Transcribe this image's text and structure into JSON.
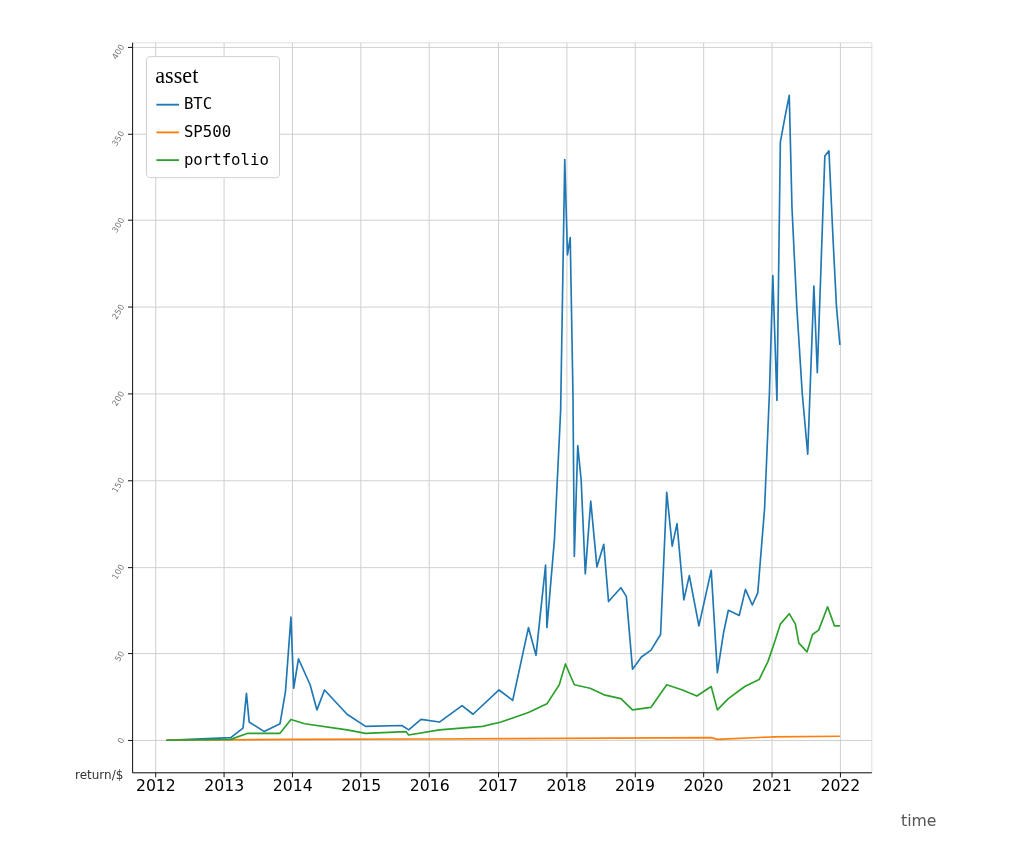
{
  "chart_data": {
    "type": "line",
    "xlabel": "time",
    "ylabel": "return/$",
    "legend_title": "asset",
    "legend": "top left",
    "grid": true,
    "xlim": [
      2011.66,
      2022.46
    ],
    "xticks": [
      2012,
      2013,
      2014,
      2015,
      2016,
      2017,
      2018,
      2019,
      2020,
      2021,
      2022
    ],
    "ylim": [
      -18.5,
      402.6
    ],
    "yticks": [
      0,
      50,
      100,
      150,
      200,
      250,
      300,
      350,
      400
    ],
    "series": [
      {
        "name": "BTC",
        "color": "#1f77b4",
        "x": [
          2012.16,
          2013.1,
          2013.28,
          2013.33,
          2013.37,
          2013.59,
          2013.82,
          2013.9,
          2013.98,
          2014.02,
          2014.09,
          2014.26,
          2014.36,
          2014.47,
          2014.8,
          2015.07,
          2015.6,
          2015.7,
          2015.88,
          2016.15,
          2016.48,
          2016.64,
          2017.02,
          2017.22,
          2017.45,
          2017.56,
          2017.7,
          2017.72,
          2017.83,
          2017.92,
          2017.98,
          2018.02,
          2018.06,
          2018.1,
          2018.12,
          2018.17,
          2018.22,
          2018.28,
          2018.36,
          2018.45,
          2018.55,
          2018.62,
          2018.8,
          2018.88,
          2018.97,
          2019.1,
          2019.24,
          2019.38,
          2019.47,
          2019.55,
          2019.62,
          2019.72,
          2019.8,
          2019.94,
          2020.12,
          2020.21,
          2020.3,
          2020.37,
          2020.53,
          2020.62,
          2020.72,
          2020.8,
          2020.9,
          2020.97,
          2021.02,
          2021.08,
          2021.13,
          2021.2,
          2021.26,
          2021.3,
          2021.37,
          2021.45,
          2021.53,
          2021.62,
          2021.67,
          2021.78,
          2021.84,
          2021.9,
          2021.95,
          2022.0
        ],
        "values": [
          0,
          1.5,
          7,
          27,
          10.5,
          5,
          9.5,
          28,
          71,
          30,
          47,
          32,
          17.5,
          29,
          15,
          8,
          8.5,
          6,
          12,
          10.5,
          20,
          15,
          29,
          23,
          65,
          49,
          101,
          65,
          116,
          190,
          335,
          280,
          290,
          200,
          106,
          170,
          150,
          96,
          138,
          100,
          113,
          80,
          88,
          83,
          41,
          48,
          52,
          61,
          143,
          112,
          125,
          81,
          95,
          66,
          98,
          39,
          62,
          75,
          72,
          87,
          78,
          85,
          134,
          200,
          268,
          196,
          345,
          360,
          372,
          307,
          250,
          200,
          165,
          262,
          212,
          337,
          340,
          289,
          250,
          228
        ]
      },
      {
        "name": "SP500",
        "color": "#ff7f0e",
        "x": [
          2012.16,
          2014.0,
          2016.0,
          2018.0,
          2020.12,
          2020.21,
          2021.0,
          2022.0
        ],
        "values": [
          0,
          0.5,
          0.7,
          1.1,
          1.5,
          0.5,
          1.9,
          2.3
        ]
      },
      {
        "name": "portfolio",
        "color": "#2ca02c",
        "x": [
          2012.16,
          2013.1,
          2013.35,
          2013.82,
          2013.98,
          2014.18,
          2014.8,
          2015.07,
          2015.66,
          2015.7,
          2016.15,
          2016.78,
          2017.05,
          2017.45,
          2017.72,
          2017.9,
          2017.99,
          2018.12,
          2018.35,
          2018.57,
          2018.8,
          2018.97,
          2019.24,
          2019.47,
          2019.7,
          2019.91,
          2020.12,
          2020.21,
          2020.37,
          2020.61,
          2020.82,
          2020.95,
          2021.04,
          2021.13,
          2021.26,
          2021.35,
          2021.4,
          2021.52,
          2021.6,
          2021.69,
          2021.82,
          2021.92,
          2022.0
        ],
        "values": [
          0,
          0.5,
          4,
          4,
          12,
          9.5,
          6,
          4,
          5,
          3,
          6,
          8,
          10.5,
          16,
          21,
          32,
          44,
          32,
          30,
          26,
          24,
          17.5,
          19,
          32,
          29,
          25.5,
          31,
          17.5,
          24,
          31,
          35,
          45.5,
          56,
          67,
          73,
          67,
          56,
          51,
          61,
          63.5,
          77,
          66,
          66
        ]
      }
    ]
  }
}
